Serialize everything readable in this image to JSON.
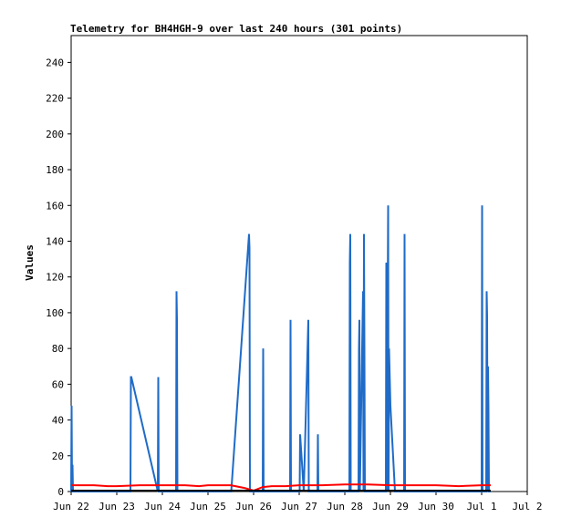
{
  "chart_data": {
    "type": "line",
    "title": "Telemetry for BH4HGH-9 over last 240 hours (301 points)",
    "ylabel": "Values",
    "xlabel": "",
    "ylim": [
      0,
      255
    ],
    "y_ticks": [
      0,
      20,
      40,
      60,
      80,
      100,
      120,
      140,
      160,
      180,
      200,
      220,
      240
    ],
    "x_ticks": [
      "Jun 22",
      "Jun 23",
      "Jun 24",
      "Jun 25",
      "Jun 26",
      "Jun 27",
      "Jun 28",
      "Jun 29",
      "Jun 30",
      "Jul 1",
      "Jul 2"
    ],
    "xlim_days": [
      0,
      10
    ],
    "grid": false,
    "legend": "none",
    "colors": {
      "series_blue": "#1f6bc7",
      "series_red": "#ff0000",
      "axis": "#000000"
    },
    "series": [
      {
        "color": "#1f6bc7",
        "x": [
          0.0,
          0.01,
          0.02,
          0.03,
          0.04,
          0.05,
          0.06,
          0.07,
          0.08,
          1.3,
          1.31,
          1.32,
          1.9,
          1.91,
          1.92,
          1.93,
          2.3,
          2.31,
          2.32,
          2.33,
          3.5,
          3.51,
          3.9,
          3.91,
          3.92,
          4.2,
          4.21,
          4.22,
          4.8,
          4.81,
          4.82,
          5.0,
          5.01,
          5.02,
          5.1,
          5.2,
          5.21,
          5.4,
          5.41,
          5.42,
          6.1,
          6.11,
          6.12,
          6.13,
          6.2,
          6.3,
          6.31,
          6.32,
          6.33,
          6.4,
          6.41,
          6.42,
          6.43,
          6.44,
          6.45,
          6.5,
          6.9,
          6.91,
          6.92,
          6.95,
          6.96,
          6.97,
          7.0,
          7.1,
          7.3,
          7.31,
          7.32,
          7.33,
          8.0,
          8.1,
          8.2,
          9.0,
          9.01,
          9.02,
          9.1,
          9.11,
          9.12,
          9.13,
          9.14,
          9.15,
          9.16,
          9.17,
          9.2
        ],
        "y": [
          0,
          48,
          0,
          15,
          0,
          0,
          0,
          0,
          0,
          0,
          64,
          64,
          0,
          64,
          0,
          0,
          0,
          112,
          96,
          0,
          0,
          0,
          144,
          136,
          0,
          0,
          80,
          0,
          0,
          96,
          0,
          0,
          0,
          32,
          0,
          96,
          0,
          0,
          32,
          0,
          0,
          128,
          144,
          0,
          0,
          0,
          80,
          96,
          0,
          112,
          0,
          144,
          80,
          0,
          0,
          0,
          0,
          128,
          0,
          160,
          0,
          80,
          48,
          0,
          0,
          144,
          0,
          0,
          0,
          0,
          0,
          0,
          160,
          0,
          0,
          112,
          98,
          0,
          70,
          45,
          0,
          0,
          0
        ]
      },
      {
        "color": "#ff0000",
        "x": [
          0.0,
          0.5,
          0.8,
          1.0,
          1.5,
          2.0,
          2.5,
          2.8,
          3.0,
          3.5,
          3.8,
          4.0,
          4.2,
          4.4,
          4.7,
          5.0,
          5.5,
          6.0,
          6.5,
          7.0,
          7.5,
          8.0,
          8.5,
          9.0,
          9.2
        ],
        "y": [
          3.5,
          3.5,
          3,
          3,
          3.5,
          3.5,
          3.5,
          3,
          3.5,
          3.5,
          2,
          0.5,
          2.5,
          3,
          3,
          3.5,
          3.5,
          4,
          4,
          3.5,
          3.5,
          3.5,
          3,
          3.5,
          3.5
        ]
      }
    ]
  }
}
